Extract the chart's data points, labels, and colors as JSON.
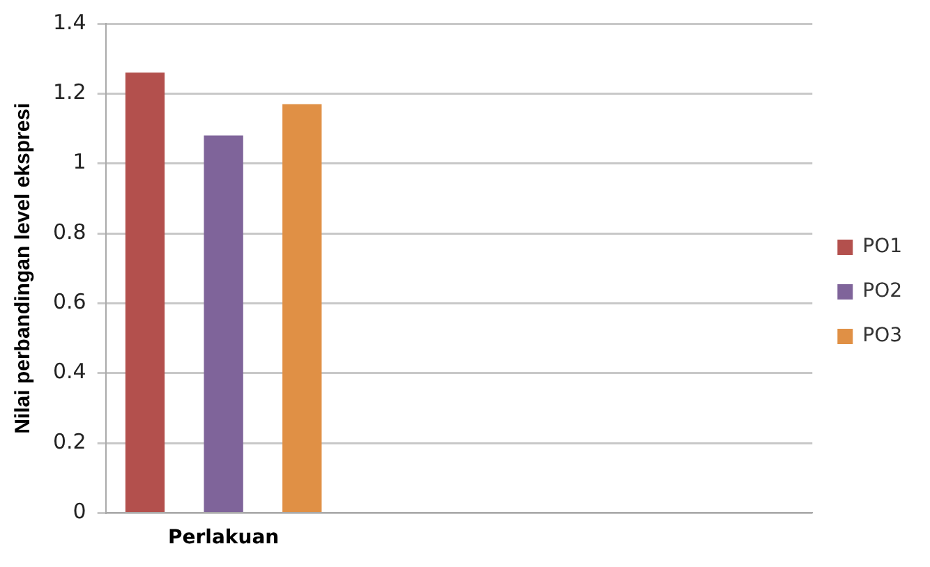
{
  "chart_data": {
    "type": "bar",
    "ylabel": "Nilai perbandingan level ekspresi",
    "categories": [
      "Perlakuan",
      null,
      null
    ],
    "series": [
      {
        "name": "PO1",
        "color": "#b3504d",
        "values": [
          1.26,
          null,
          null
        ]
      },
      {
        "name": "PO2",
        "color": "#7f649a",
        "values": [
          1.08,
          null,
          null
        ]
      },
      {
        "name": "PO3",
        "color": "#e09045",
        "values": [
          1.17,
          null,
          null
        ]
      }
    ],
    "ylim": [
      0,
      1.4
    ],
    "yticks": [
      0,
      0.2,
      0.4,
      0.6,
      0.8,
      1,
      1.2,
      1.4
    ],
    "grid": "y",
    "legend": "right"
  }
}
